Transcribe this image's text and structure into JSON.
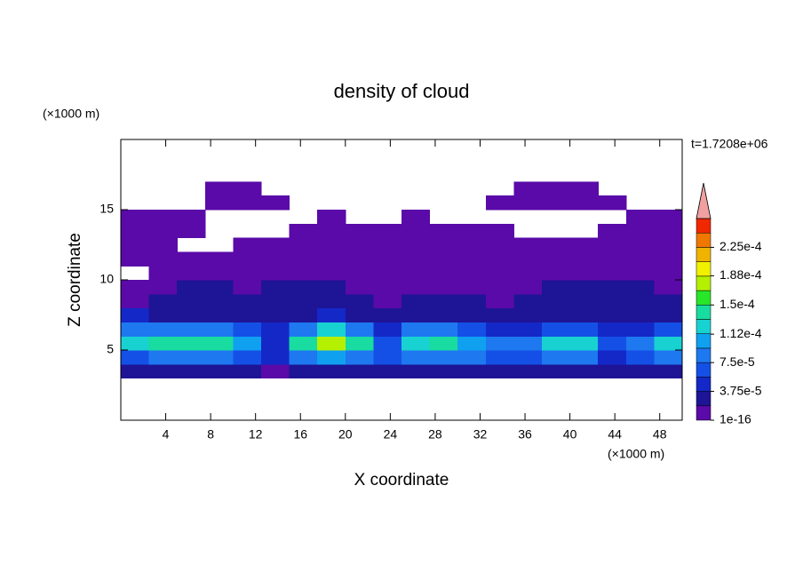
{
  "chart_data": {
    "type": "contour",
    "title": "density of cloud",
    "x_label": "X coordinate",
    "y_label": "Z coordinate",
    "x_unit": "(×1000 m)",
    "y_unit": "(×1000 m)",
    "annotation": "t=1.7208e+06",
    "xlim": [
      0,
      50
    ],
    "ylim": [
      0,
      20
    ],
    "xticks": [
      4,
      8,
      12,
      16,
      20,
      24,
      28,
      32,
      36,
      40,
      44,
      48
    ],
    "yticks": [
      5,
      10,
      15
    ],
    "x": [
      1.25,
      3.75,
      6.25,
      8.75,
      11.25,
      13.75,
      16.25,
      18.75,
      21.25,
      23.75,
      26.25,
      28.75,
      31.25,
      33.75,
      36.25,
      38.75,
      41.25,
      43.75,
      46.25,
      48.75
    ],
    "y": [
      3.5,
      4.5,
      5.5,
      6.5,
      7.5,
      8.5,
      9.5,
      10.5,
      11.5,
      12.5,
      13.5,
      14.5,
      15.5,
      16.5
    ],
    "z": [
      [
        2.5e-05,
        3e-05,
        3e-05,
        2.5e-05,
        2e-05,
        1.5e-05,
        3e-05,
        3e-05,
        3e-05,
        2e-05,
        2.5e-05,
        3e-05,
        3e-05,
        2e-05,
        2e-05,
        3e-05,
        3e-05,
        2e-05,
        2e-05,
        2.5e-05
      ],
      [
        7e-05,
        8e-05,
        9e-05,
        9e-05,
        7e-05,
        4e-05,
        9e-05,
        0.0001,
        9e-05,
        6e-05,
        8e-05,
        8e-05,
        8e-05,
        6e-05,
        6e-05,
        8e-05,
        8e-05,
        5e-05,
        6e-05,
        8e-05
      ],
      [
        0.00012,
        0.000135,
        0.000145,
        0.00014,
        0.0001,
        5e-05,
        0.00014,
        0.00017,
        0.00014,
        7e-05,
        0.00013,
        0.000135,
        0.00011,
        8e-05,
        8e-05,
        0.00012,
        0.00012,
        6e-05,
        9e-05,
        0.000115
      ],
      [
        8e-05,
        8e-05,
        9e-05,
        8e-05,
        6e-05,
        4e-05,
        9e-05,
        0.00012,
        9e-05,
        5e-05,
        8e-05,
        8e-05,
        7e-05,
        5e-05,
        5e-05,
        7e-05,
        7e-05,
        4e-05,
        5e-05,
        6e-05
      ],
      [
        4e-05,
        3.5e-05,
        3.5e-05,
        3e-05,
        3e-05,
        2.5e-05,
        3.5e-05,
        4e-05,
        3.5e-05,
        2.5e-05,
        3e-05,
        3e-05,
        3e-05,
        2.5e-05,
        2.5e-05,
        3e-05,
        3e-05,
        2.5e-05,
        2.5e-05,
        3e-05
      ],
      [
        1.5e-05,
        2e-05,
        2.5e-05,
        2e-05,
        2e-05,
        2e-05,
        2e-05,
        2.5e-05,
        2e-05,
        1.5e-05,
        2e-05,
        2e-05,
        2e-05,
        1.5e-05,
        2e-05,
        2e-05,
        2.5e-05,
        2e-05,
        2e-05,
        2e-05
      ],
      [
        5e-06,
        1e-05,
        2e-05,
        2e-05,
        1.5e-05,
        2e-05,
        2e-05,
        2e-05,
        1.5e-05,
        1e-05,
        1.5e-05,
        1.5e-05,
        1e-05,
        1e-05,
        1.5e-05,
        2e-05,
        2e-05,
        2e-05,
        2e-05,
        1.5e-05
      ],
      [
        null,
        5e-06,
        1e-05,
        1e-05,
        5e-06,
        1e-05,
        1.5e-05,
        1e-05,
        5e-06,
        5e-06,
        5e-06,
        5e-06,
        5e-06,
        5e-06,
        5e-06,
        1e-05,
        1e-05,
        1e-05,
        1e-05,
        5e-06
      ],
      [
        3e-06,
        3e-06,
        3e-06,
        3e-06,
        3e-06,
        3e-06,
        3e-06,
        3e-06,
        3e-06,
        3e-06,
        3e-06,
        3e-06,
        3e-06,
        3e-06,
        3e-06,
        3e-06,
        3e-06,
        3e-06,
        3e-06,
        3e-06
      ],
      [
        3e-06,
        3e-06,
        null,
        null,
        3e-06,
        3e-06,
        3e-06,
        3e-06,
        3e-06,
        3e-06,
        3e-06,
        3e-06,
        3e-06,
        3e-06,
        3e-06,
        3e-06,
        3e-06,
        3e-06,
        3e-06,
        3e-06
      ],
      [
        3e-06,
        3e-06,
        3e-06,
        null,
        null,
        null,
        3e-06,
        3e-06,
        3e-06,
        3e-06,
        3e-06,
        3e-06,
        3e-06,
        3e-06,
        null,
        null,
        null,
        3e-06,
        3e-06,
        3e-06
      ],
      [
        3e-06,
        3e-06,
        3e-06,
        null,
        null,
        null,
        null,
        3e-06,
        null,
        null,
        3e-06,
        null,
        null,
        null,
        null,
        null,
        null,
        null,
        3e-06,
        3e-06
      ],
      [
        null,
        null,
        null,
        3e-06,
        3e-06,
        3e-06,
        null,
        null,
        null,
        null,
        null,
        null,
        null,
        3e-06,
        3e-06,
        3e-06,
        3e-06,
        3e-06,
        null,
        null
      ],
      [
        null,
        null,
        null,
        3e-06,
        3e-06,
        null,
        null,
        null,
        null,
        null,
        null,
        null,
        null,
        null,
        3e-06,
        3e-06,
        3e-06,
        null,
        null,
        null
      ]
    ],
    "colorbar": {
      "levels": [
        1e-16,
        1.875e-05,
        3.75e-05,
        5.625e-05,
        7.5e-05,
        9.375e-05,
        0.000112,
        0.00013125,
        0.00015,
        0.00016875,
        0.000188,
        0.00020625,
        0.000225,
        0.00024375,
        0.0002625
      ],
      "colors": [
        "#5a0aa8",
        "#1e1496",
        "#1428c8",
        "#1450e6",
        "#1e78f0",
        "#10a0f0",
        "#18d2d2",
        "#18dca0",
        "#28e628",
        "#b4f000",
        "#f0f000",
        "#f0b400",
        "#f07800",
        "#f02800"
      ],
      "extend_color": "#f0a0a0",
      "ticks": [
        1e-16,
        {
          "value": 3.75e-05,
          "label": "3.75e-5"
        },
        {
          "value": 7.5e-05,
          "label": "7.5e-5"
        },
        {
          "value": 0.000112,
          "label": "1.12e-4"
        },
        {
          "value": 0.00015,
          "label": "1.5e-4"
        },
        {
          "value": 0.000188,
          "label": "1.88e-4"
        },
        {
          "value": 0.000225,
          "label": "2.25e-4"
        }
      ]
    }
  }
}
